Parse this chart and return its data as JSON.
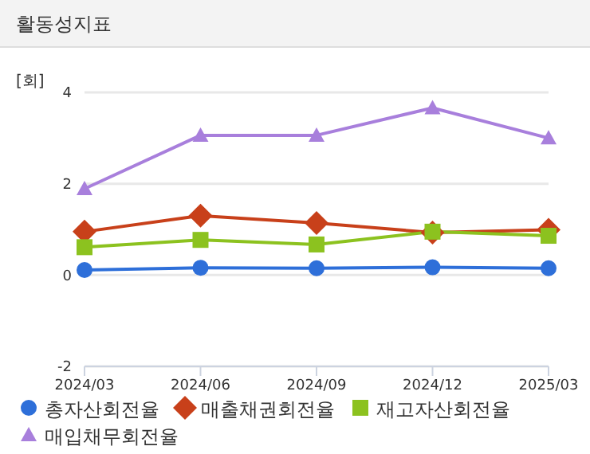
{
  "chart_data": {
    "type": "line",
    "title": "활동성지표",
    "ylabel": "[회]",
    "categories": [
      "2024/03",
      "2024/06",
      "2024/09",
      "2024/12",
      "2025/03"
    ],
    "series": [
      {
        "name": "총자산회전율",
        "color": "#2e6fd9",
        "marker": "circle",
        "values": [
          0.11,
          0.16,
          0.15,
          0.17,
          0.15
        ]
      },
      {
        "name": "매출채권회전율",
        "color": "#c8401a",
        "marker": "diamond",
        "values": [
          0.95,
          1.3,
          1.14,
          0.93,
          0.99
        ]
      },
      {
        "name": "재고자산회전율",
        "color": "#8cc21f",
        "marker": "square",
        "values": [
          0.61,
          0.77,
          0.67,
          0.95,
          0.86
        ]
      },
      {
        "name": "매입채무회전율",
        "color": "#a87fdc",
        "marker": "triangle",
        "values": [
          1.89,
          3.06,
          3.06,
          3.66,
          3.0
        ]
      }
    ],
    "ylim": [
      -2,
      4
    ],
    "yticks": [
      -2,
      0,
      2,
      4
    ],
    "grid": "y",
    "legend": "bottom"
  }
}
